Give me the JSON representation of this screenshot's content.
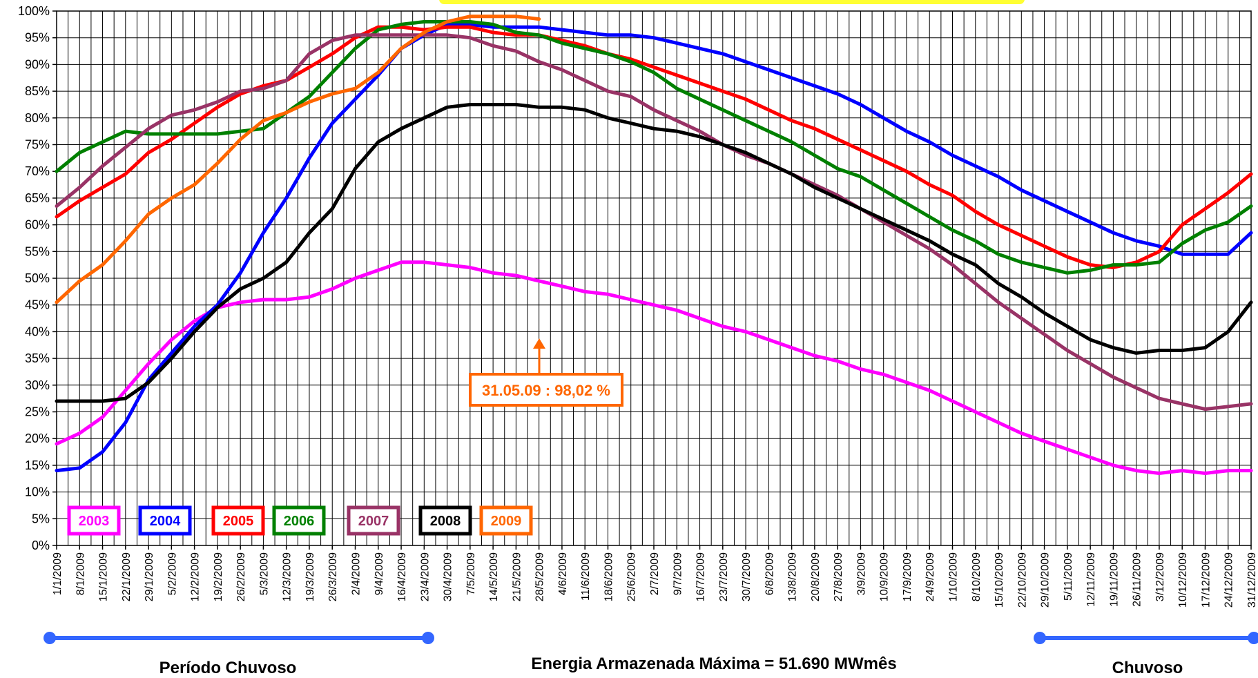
{
  "chart_data": {
    "type": "line",
    "y_tick_labels": [
      "0%",
      "5%",
      "10%",
      "15%",
      "20%",
      "25%",
      "30%",
      "35%",
      "40%",
      "45%",
      "50%",
      "55%",
      "60%",
      "65%",
      "70%",
      "75%",
      "80%",
      "85%",
      "90%",
      "95%",
      "100%"
    ],
    "ylim": [
      0,
      100
    ],
    "grid": true,
    "x_labels": [
      "1/1/2009",
      "8/1/2009",
      "15/1/2009",
      "22/1/2009",
      "29/1/2009",
      "5/2/2009",
      "12/2/2009",
      "19/2/2009",
      "26/2/2009",
      "5/3/2009",
      "12/3/2009",
      "19/3/2009",
      "26/3/2009",
      "2/4/2009",
      "9/4/2009",
      "16/4/2009",
      "23/4/2009",
      "30/4/2009",
      "7/5/2009",
      "14/5/2009",
      "21/5/2009",
      "28/5/2009",
      "4/6/2009",
      "11/6/2009",
      "18/6/2009",
      "25/6/2009",
      "2/7/2009",
      "9/7/2009",
      "16/7/2009",
      "23/7/2009",
      "30/7/2009",
      "6/8/2009",
      "13/8/2009",
      "20/8/2009",
      "27/8/2009",
      "3/9/2009",
      "10/9/2009",
      "17/9/2009",
      "24/9/2009",
      "1/10/2009",
      "8/10/2009",
      "15/10/2009",
      "22/10/2009",
      "29/10/2009",
      "5/11/2009",
      "12/11/2009",
      "19/11/2009",
      "26/11/2009",
      "3/12/2009",
      "10/12/2009",
      "17/12/2009",
      "24/12/2009",
      "31/12/2009"
    ],
    "series": [
      {
        "name": "2003",
        "color": "#ff00ff",
        "values": [
          19,
          21,
          24,
          29,
          34,
          38.5,
          42,
          44.5,
          45.5,
          46,
          46,
          46.5,
          48,
          50,
          51.5,
          53,
          53,
          52.5,
          52,
          51,
          50.5,
          49.5,
          48.5,
          47.5,
          47,
          46,
          45,
          44,
          42.5,
          41,
          40,
          38.5,
          37,
          35.5,
          34.5,
          33,
          32,
          30.5,
          29,
          27,
          25,
          23,
          21,
          19.5,
          18,
          16.5,
          15,
          14,
          13.5,
          14,
          13.5,
          14,
          14
        ]
      },
      {
        "name": "2004",
        "color": "#0000ff",
        "values": [
          14,
          14.5,
          17.5,
          23,
          31,
          36,
          41,
          45,
          51,
          58.5,
          65,
          72.5,
          79,
          83.5,
          88,
          93,
          95.5,
          97.5,
          97.5,
          97,
          97,
          97,
          96.5,
          96,
          95.5,
          95.5,
          95,
          94,
          93,
          92,
          90.5,
          89,
          87.5,
          86,
          84.5,
          82.5,
          80,
          77.5,
          75.5,
          73,
          71,
          69,
          66.5,
          64.5,
          62.5,
          60.5,
          58.5,
          57,
          56,
          54.5,
          54.5,
          54.5,
          58.5
        ]
      },
      {
        "name": "2005",
        "color": "#ff0000",
        "values": [
          61.5,
          64.5,
          67,
          69.5,
          73.5,
          76,
          79,
          82,
          84.5,
          86,
          87,
          89.5,
          92,
          95,
          97,
          97,
          96.5,
          97,
          97,
          96,
          95.5,
          95.5,
          94.5,
          93.5,
          92,
          91,
          89.5,
          88,
          86.5,
          85,
          83.5,
          81.5,
          79.5,
          78,
          76,
          74,
          72,
          70,
          67.5,
          65.5,
          62.5,
          60,
          58,
          56,
          54,
          52.5,
          52,
          53,
          55,
          60,
          63,
          66,
          69.5
        ]
      },
      {
        "name": "2006",
        "color": "#008000",
        "values": [
          70,
          73.5,
          75.5,
          77.5,
          77,
          77,
          77,
          77,
          77.5,
          78,
          81,
          84,
          88.5,
          93,
          96.5,
          97.5,
          98,
          98,
          98,
          97.5,
          96,
          95.5,
          94,
          93,
          92,
          90.5,
          88.5,
          85.5,
          83.5,
          81.5,
          79.5,
          77.5,
          75.5,
          73,
          70.5,
          69,
          66.5,
          64,
          61.5,
          59,
          57,
          54.5,
          53,
          52,
          51,
          51.5,
          52.5,
          52.5,
          53,
          56.5,
          59,
          60.5,
          63.5
        ]
      },
      {
        "name": "2007",
        "color": "#993366",
        "values": [
          63.5,
          67,
          71,
          74.5,
          78,
          80.5,
          81.5,
          83,
          85,
          85.5,
          87,
          92,
          94.5,
          95.5,
          95.5,
          95.5,
          95.5,
          95.5,
          95,
          93.5,
          92.5,
          90.5,
          89,
          87,
          85,
          84,
          81.5,
          79.5,
          77.5,
          75,
          73,
          71.5,
          69.5,
          67.5,
          65.5,
          63,
          60.5,
          58,
          55.5,
          52.5,
          49,
          45.5,
          42.5,
          39.5,
          36.5,
          34,
          31.5,
          29.5,
          27.5,
          26.5,
          25.5,
          26,
          26.5
        ]
      },
      {
        "name": "2008",
        "color": "#000000",
        "values": [
          27,
          27,
          27,
          27.5,
          30.5,
          35,
          40,
          44.5,
          48,
          50,
          53,
          58.5,
          63,
          70.5,
          75.5,
          78,
          80,
          82,
          82.5,
          82.5,
          82.5,
          82,
          82,
          81.5,
          80,
          79,
          78,
          77.5,
          76.5,
          75,
          73.5,
          71.5,
          69.5,
          67,
          65,
          63,
          61,
          59,
          57,
          54.5,
          52.5,
          49,
          46.5,
          43.5,
          41,
          38.5,
          37,
          36,
          36.5,
          36.5,
          37,
          40,
          45.5
        ]
      },
      {
        "name": "2009",
        "color": "#ff6600",
        "values": [
          45.5,
          49.5,
          52.5,
          57,
          62,
          65,
          67.5,
          71.5,
          76,
          79.5,
          81,
          83,
          84.5,
          85.5,
          88.5,
          93,
          96,
          98,
          99,
          99,
          99,
          98.5
        ]
      }
    ],
    "legend": [
      "2003",
      "2004",
      "2005",
      "2006",
      "2007",
      "2008",
      "2009"
    ],
    "legend_placement": "bottom-left",
    "annotation": "31.05.09 : 98,02 %",
    "annotation_value": 98.02
  },
  "labels": {
    "period_left": "Período Chuvoso",
    "period_right": "Chuvoso",
    "energy": "Energia Armazenada Máxima = 51.690 MWmês"
  }
}
